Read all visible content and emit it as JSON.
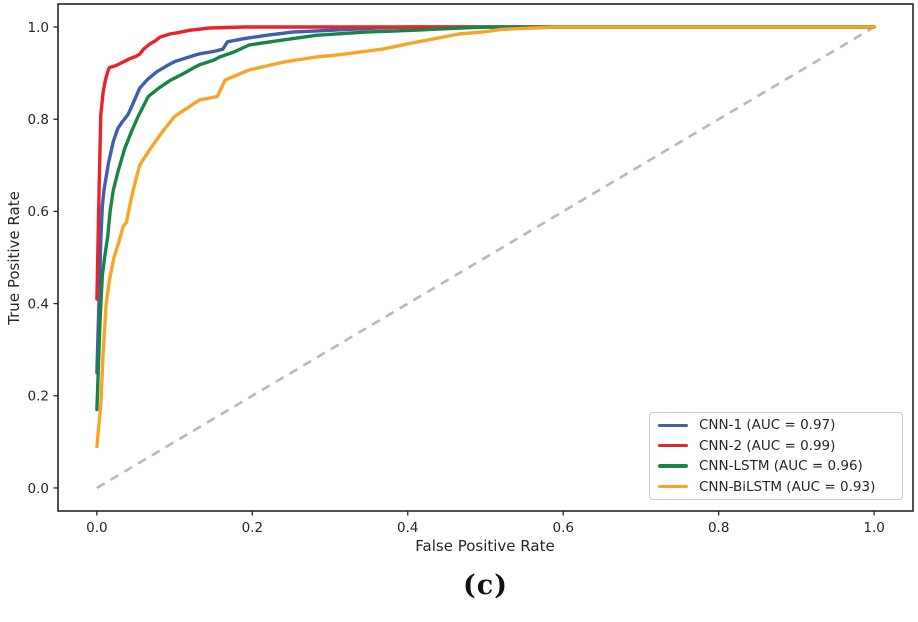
{
  "figure": {
    "caption": "(c)"
  },
  "chart_data": {
    "type": "line",
    "title": "",
    "xlabel": "False Positive Rate",
    "ylabel": "True Positive Rate",
    "xlim": [
      -0.05,
      1.05
    ],
    "ylim": [
      -0.05,
      1.05
    ],
    "x_tick_labels": [
      "0.0",
      "0.2",
      "0.4",
      "0.6",
      "0.8",
      "1.0"
    ],
    "y_tick_labels": [
      "0.0",
      "0.2",
      "0.4",
      "0.6",
      "0.8",
      "1.0"
    ],
    "grid": false,
    "axis_color": "#262626",
    "legend_position": "lower right",
    "series": [
      {
        "name": "CNN-1",
        "legend_label": "CNN-1 (AUC = 0.97)",
        "auc": 0.97,
        "color": "#3F5EAE",
        "points": [
          [
            0,
            0.25
          ],
          [
            0.003,
            0.42
          ],
          [
            0.005,
            0.54
          ],
          [
            0.007,
            0.61
          ],
          [
            0.009,
            0.645
          ],
          [
            0.011,
            0.665
          ],
          [
            0.015,
            0.705
          ],
          [
            0.021,
            0.751
          ],
          [
            0.027,
            0.78
          ],
          [
            0.033,
            0.795
          ],
          [
            0.04,
            0.81
          ],
          [
            0.046,
            0.832
          ],
          [
            0.055,
            0.867
          ],
          [
            0.065,
            0.886
          ],
          [
            0.077,
            0.903
          ],
          [
            0.09,
            0.916
          ],
          [
            0.1,
            0.925
          ],
          [
            0.115,
            0.933
          ],
          [
            0.132,
            0.942
          ],
          [
            0.15,
            0.947
          ],
          [
            0.162,
            0.952
          ],
          [
            0.168,
            0.968
          ],
          [
            0.19,
            0.975
          ],
          [
            0.218,
            0.982
          ],
          [
            0.252,
            0.989
          ],
          [
            0.3,
            0.993
          ],
          [
            0.36,
            0.998
          ],
          [
            0.4,
            1.0
          ],
          [
            1.0,
            1.0
          ]
        ]
      },
      {
        "name": "CNN-2",
        "legend_label": "CNN-2 (AUC = 0.99)",
        "auc": 0.99,
        "color": "#E8232A",
        "points": [
          [
            0,
            0.41
          ],
          [
            0.003,
            0.66
          ],
          [
            0.005,
            0.81
          ],
          [
            0.008,
            0.858
          ],
          [
            0.011,
            0.885
          ],
          [
            0.014,
            0.903
          ],
          [
            0.016,
            0.912
          ],
          [
            0.024,
            0.916
          ],
          [
            0.03,
            0.921
          ],
          [
            0.042,
            0.931
          ],
          [
            0.05,
            0.936
          ],
          [
            0.055,
            0.941
          ],
          [
            0.06,
            0.952
          ],
          [
            0.068,
            0.963
          ],
          [
            0.075,
            0.97
          ],
          [
            0.081,
            0.978
          ],
          [
            0.094,
            0.985
          ],
          [
            0.105,
            0.988
          ],
          [
            0.119,
            0.993
          ],
          [
            0.145,
            0.998
          ],
          [
            0.19,
            1.0
          ],
          [
            1.0,
            1.0
          ]
        ]
      },
      {
        "name": "CNN-LSTM",
        "legend_label": "CNN-LSTM (AUC = 0.96)",
        "auc": 0.96,
        "color": "#1A8447",
        "points": [
          [
            0,
            0.17
          ],
          [
            0.004,
            0.36
          ],
          [
            0.007,
            0.46
          ],
          [
            0.01,
            0.5
          ],
          [
            0.014,
            0.545
          ],
          [
            0.017,
            0.6
          ],
          [
            0.021,
            0.645
          ],
          [
            0.027,
            0.685
          ],
          [
            0.036,
            0.737
          ],
          [
            0.045,
            0.775
          ],
          [
            0.053,
            0.806
          ],
          [
            0.066,
            0.849
          ],
          [
            0.08,
            0.868
          ],
          [
            0.095,
            0.885
          ],
          [
            0.11,
            0.898
          ],
          [
            0.125,
            0.912
          ],
          [
            0.132,
            0.918
          ],
          [
            0.15,
            0.928
          ],
          [
            0.158,
            0.935
          ],
          [
            0.175,
            0.945
          ],
          [
            0.196,
            0.961
          ],
          [
            0.231,
            0.97
          ],
          [
            0.282,
            0.982
          ],
          [
            0.346,
            0.989
          ],
          [
            0.406,
            0.993
          ],
          [
            0.457,
            0.997
          ],
          [
            0.5,
            1.0
          ],
          [
            0.59,
            1.0
          ],
          [
            1.0,
            1.0
          ]
        ]
      },
      {
        "name": "CNN-BiLSTM",
        "legend_label": "CNN-BiLSTM (AUC = 0.93)",
        "auc": 0.93,
        "color": "#F7A428",
        "points": [
          [
            0,
            0.09
          ],
          [
            0.005,
            0.18
          ],
          [
            0.008,
            0.29
          ],
          [
            0.012,
            0.4
          ],
          [
            0.016,
            0.45
          ],
          [
            0.022,
            0.5
          ],
          [
            0.028,
            0.532
          ],
          [
            0.034,
            0.568
          ],
          [
            0.038,
            0.576
          ],
          [
            0.042,
            0.61
          ],
          [
            0.047,
            0.648
          ],
          [
            0.055,
            0.7
          ],
          [
            0.068,
            0.734
          ],
          [
            0.083,
            0.77
          ],
          [
            0.1,
            0.806
          ],
          [
            0.118,
            0.826
          ],
          [
            0.132,
            0.842
          ],
          [
            0.155,
            0.849
          ],
          [
            0.165,
            0.885
          ],
          [
            0.196,
            0.907
          ],
          [
            0.24,
            0.924
          ],
          [
            0.282,
            0.935
          ],
          [
            0.312,
            0.94
          ],
          [
            0.367,
            0.952
          ],
          [
            0.41,
            0.967
          ],
          [
            0.466,
            0.985
          ],
          [
            0.5,
            0.99
          ],
          [
            0.52,
            0.995
          ],
          [
            0.59,
            1.0
          ],
          [
            1.0,
            1.0
          ]
        ]
      }
    ],
    "reference_line": {
      "label": "chance diagonal",
      "from": [
        0,
        0
      ],
      "to": [
        1,
        1
      ],
      "style": "dashed",
      "color": "#B9B9B9"
    }
  }
}
